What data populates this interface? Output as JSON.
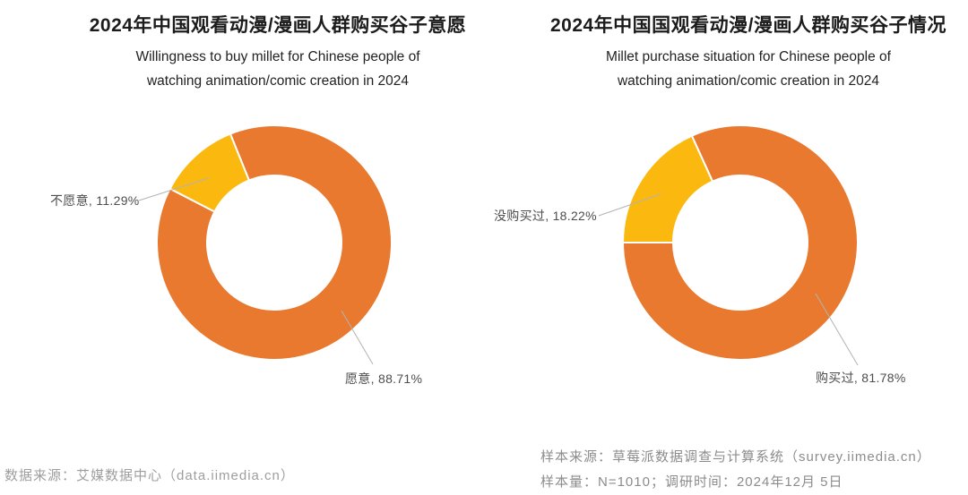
{
  "chart_data": [
    {
      "type": "pie",
      "variant": "donut",
      "title": "2024年中国观看动漫/漫画人群购买谷子意愿",
      "subtitle_lines": [
        "Willingness to buy millet for Chinese people of",
        "watching animation/comic creation in 2024"
      ],
      "slices": [
        {
          "label": "愿意",
          "value": 88.71,
          "display": "愿意, 88.71%",
          "color": "#E8792F"
        },
        {
          "label": "不愿意",
          "value": 11.29,
          "display": "不愿意, 11.29%",
          "color": "#FBB90F"
        }
      ],
      "unit": "%",
      "start_angle": 112,
      "legend": "none",
      "label_style": "outside-leader-lines"
    },
    {
      "type": "pie",
      "variant": "donut",
      "title": "2024年中国国观看动漫/漫画人群购买谷子情况",
      "subtitle_lines": [
        "Millet purchase situation for Chinese people of",
        "watching animation/comic creation in 2024"
      ],
      "slices": [
        {
          "label": "购买过",
          "value": 81.78,
          "display": "购买过, 81.78%",
          "color": "#E8792F"
        },
        {
          "label": "没购买过",
          "value": 18.22,
          "display": "没购买过, 18.22%",
          "color": "#FBB90F"
        }
      ],
      "unit": "%",
      "start_angle": 114.4,
      "legend": "none",
      "label_style": "outside-leader-lines"
    }
  ],
  "footer": {
    "left_source": "数据来源：艾媒数据中心（data.iimedia.cn）",
    "right_source_line1": "样本来源：草莓派数据调查与计算系统（survey.iimedia.cn）",
    "right_source_line2": "样本量：N=1010；调研时间：2024年12月 5日"
  },
  "colors": {
    "orange": "#E8792F",
    "yellow": "#FBB90F",
    "leader_line": "#b3b3b3",
    "label_text": "#4d4d4d",
    "title_text": "#1c1c1c",
    "footer_left_text": "#9e9e9e",
    "footer_right_text": "#8c8c8c",
    "background": "#ffffff"
  }
}
